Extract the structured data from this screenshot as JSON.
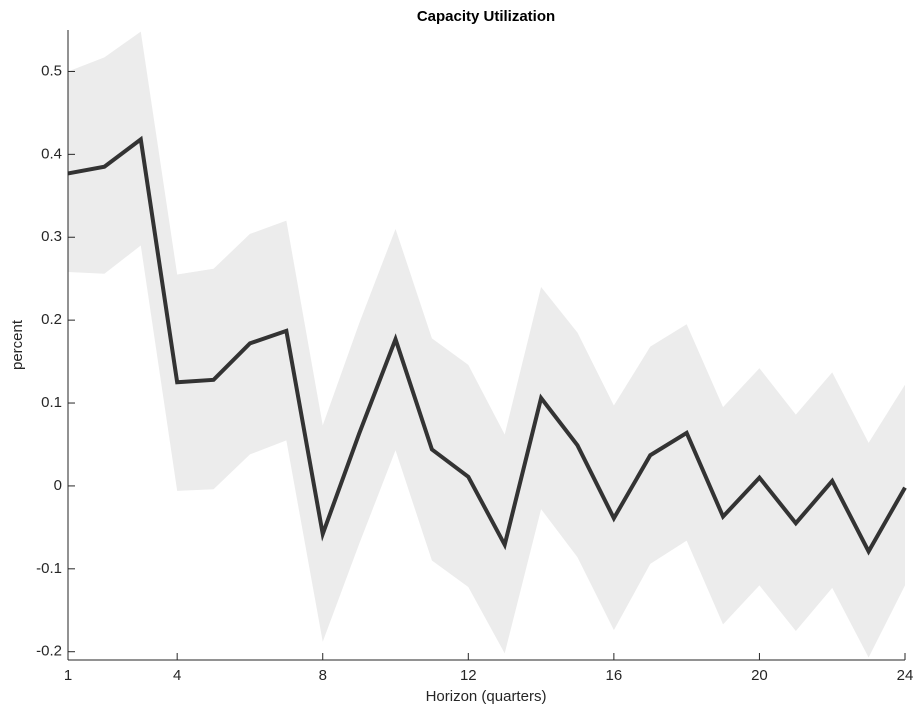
{
  "chart_data": {
    "type": "line",
    "title": "Capacity Utilization",
    "x_label": "Horizon (quarters)",
    "y_label": "percent",
    "x": [
      1,
      2,
      3,
      4,
      5,
      6,
      7,
      8,
      9,
      10,
      11,
      12,
      13,
      14,
      15,
      16,
      17,
      18,
      19,
      20,
      21,
      22,
      23,
      24
    ],
    "series": [
      {
        "color": "#333333",
        "values": [
          0.377,
          0.385,
          0.418,
          0.125,
          0.128,
          0.172,
          0.187,
          -0.058,
          0.063,
          0.177,
          0.044,
          0.011,
          -0.071,
          0.106,
          0.049,
          -0.039,
          0.037,
          0.064,
          -0.037,
          0.01,
          -0.045,
          0.006,
          -0.079,
          -0.002
        ]
      }
    ],
    "band": {
      "color": "#ececec",
      "upper": [
        0.5,
        0.517,
        0.548,
        0.255,
        0.262,
        0.304,
        0.32,
        0.073,
        0.196,
        0.31,
        0.178,
        0.146,
        0.062,
        0.24,
        0.185,
        0.097,
        0.168,
        0.195,
        0.095,
        0.142,
        0.086,
        0.137,
        0.052,
        0.122
      ],
      "lower": [
        0.258,
        0.256,
        0.29,
        -0.006,
        -0.004,
        0.038,
        0.055,
        -0.188,
        -0.07,
        0.043,
        -0.09,
        -0.122,
        -0.202,
        -0.028,
        -0.086,
        -0.174,
        -0.094,
        -0.066,
        -0.167,
        -0.12,
        -0.175,
        -0.123,
        -0.207,
        -0.12
      ]
    },
    "xlim": [
      1,
      24
    ],
    "xticks": [
      1,
      4,
      8,
      12,
      16,
      20,
      24
    ],
    "ylim": [
      -0.21,
      0.55
    ],
    "yticks": [
      -0.2,
      -0.1,
      0,
      0.1,
      0.2,
      0.3,
      0.4,
      0.5
    ]
  }
}
